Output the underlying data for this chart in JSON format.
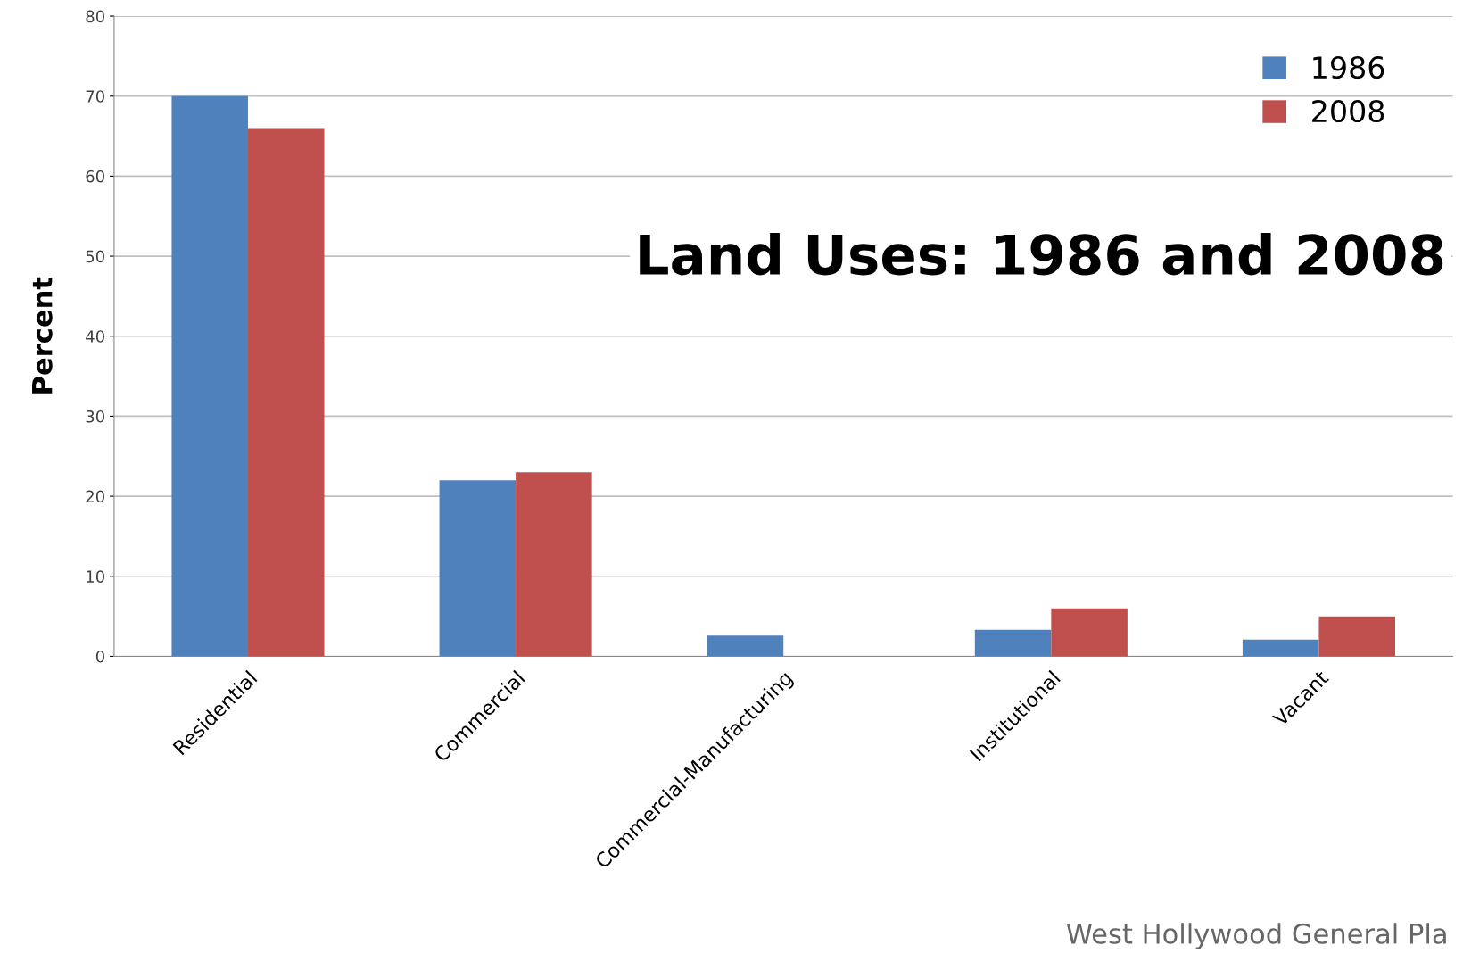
{
  "chart_data": {
    "type": "bar",
    "title": "Land Uses: 1986 and 2008",
    "ylabel": "Percent",
    "categories": [
      "Residential",
      "Commercial",
      "Commercial-Manufacturing",
      "Institutional",
      "Vacant"
    ],
    "series": [
      {
        "name": "1986",
        "color": "#4f81bd",
        "values": [
          70,
          22,
          2.6,
          3.3,
          2.1
        ]
      },
      {
        "name": "2008",
        "color": "#c0504d",
        "values": [
          66,
          23,
          null,
          6,
          5
        ]
      }
    ],
    "ylim": [
      0,
      80
    ],
    "yticks": [
      0,
      10,
      20,
      30,
      40,
      50,
      60,
      70,
      80
    ],
    "grid": "y",
    "legend": "top right",
    "annotations": [
      "West Hollywood General Pla"
    ]
  }
}
